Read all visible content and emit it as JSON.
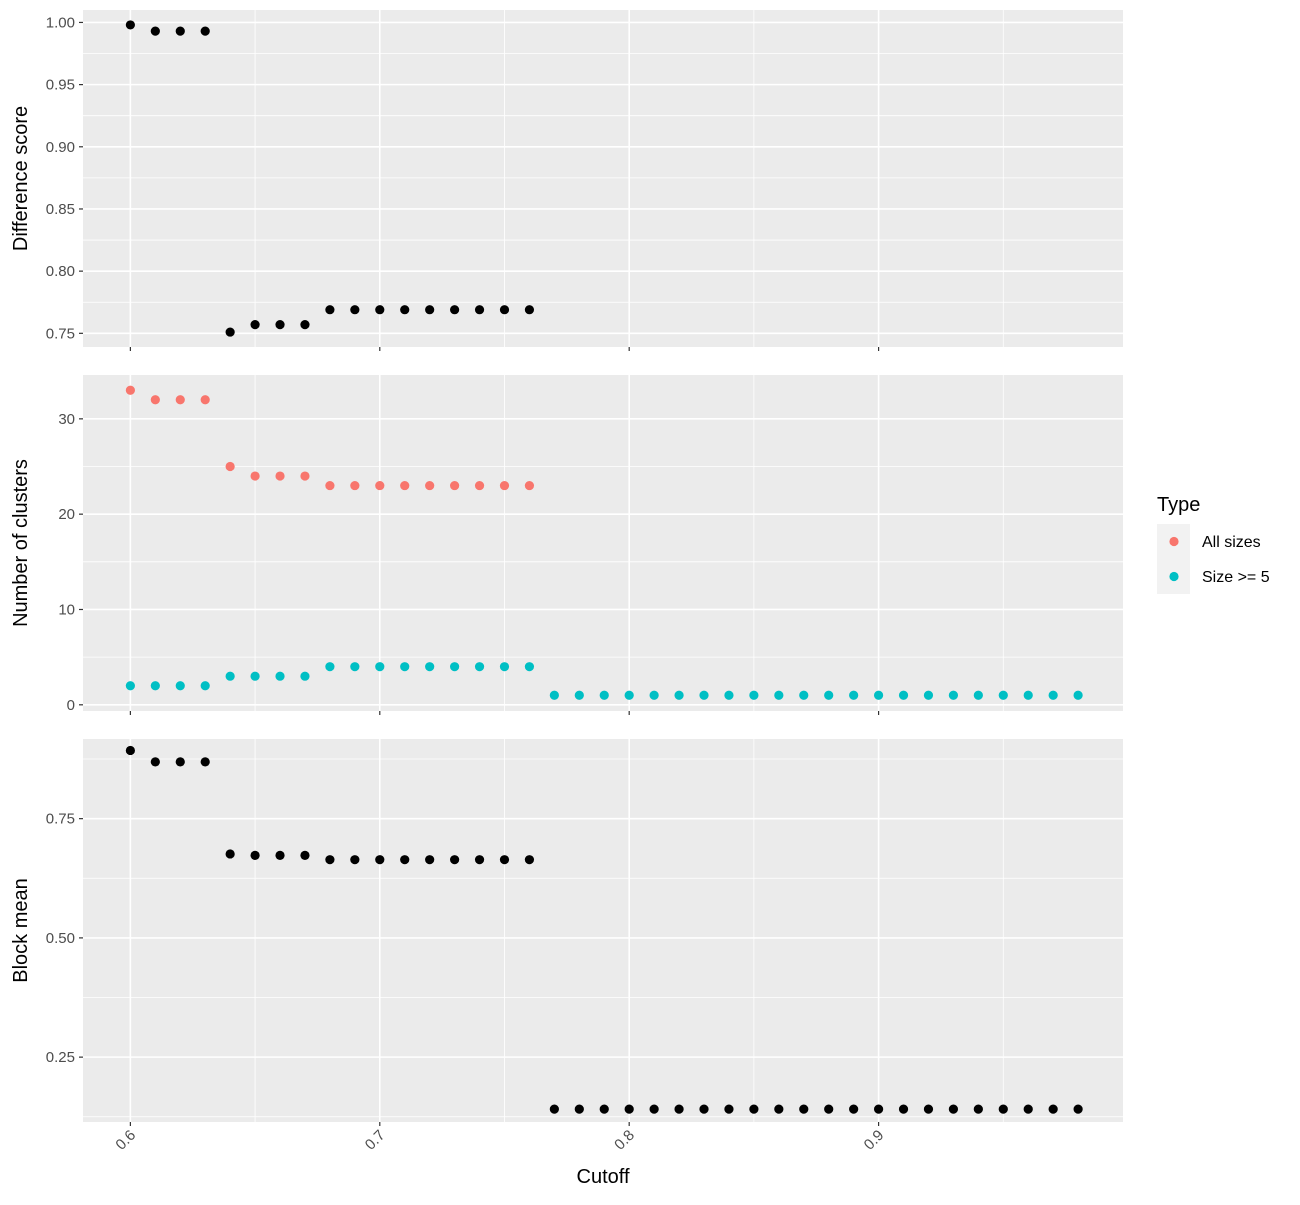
{
  "chart_data": {
    "type": "scatter",
    "xlabel": "Cutoff",
    "x_ticks": [
      0.6,
      0.7,
      0.8,
      0.9
    ],
    "x_tick_labels": [
      "0.6",
      "0.7",
      "0.8",
      "0.9"
    ],
    "xlim": [
      0.581,
      0.998
    ],
    "grid": true,
    "legend": {
      "title": "Type",
      "placement": "right",
      "entries": [
        {
          "label": "All sizes",
          "color": "#F8766D"
        },
        {
          "label": "Size >= 5",
          "color": "#00BFC4"
        }
      ]
    },
    "point_color": "#000000",
    "panels": [
      {
        "ylabel": "Difference score",
        "ylim": [
          0.739,
          1.01
        ],
        "y_ticks": [
          0.75,
          0.8,
          0.85,
          0.9,
          0.95,
          1.0
        ],
        "y_tick_labels": [
          "0.75",
          "0.80",
          "0.85",
          "0.90",
          "0.95",
          "1.00"
        ],
        "series": [
          {
            "color": "#000000",
            "x": [
              0.6,
              0.61,
              0.62,
              0.63,
              0.64,
              0.65,
              0.66,
              0.67,
              0.68,
              0.69,
              0.7,
              0.71,
              0.72,
              0.73,
              0.74,
              0.75,
              0.76
            ],
            "y": [
              0.998,
              0.993,
              0.993,
              0.993,
              0.751,
              0.757,
              0.757,
              0.757,
              0.769,
              0.769,
              0.769,
              0.769,
              0.769,
              0.769,
              0.769,
              0.769,
              0.769
            ]
          }
        ]
      },
      {
        "ylabel": "Number of clusters",
        "ylim": [
          -0.65,
          34.6
        ],
        "y_ticks": [
          0,
          10,
          20,
          30
        ],
        "y_tick_labels": [
          "0",
          "10",
          "20",
          "30"
        ],
        "series": [
          {
            "name": "All sizes",
            "color": "#F8766D",
            "x": [
              0.6,
              0.61,
              0.62,
              0.63,
              0.64,
              0.65,
              0.66,
              0.67,
              0.68,
              0.69,
              0.7,
              0.71,
              0.72,
              0.73,
              0.74,
              0.75,
              0.76
            ],
            "y": [
              33,
              32,
              32,
              32,
              25,
              24,
              24,
              24,
              23,
              23,
              23,
              23,
              23,
              23,
              23,
              23,
              23
            ]
          },
          {
            "name": "Size >= 5",
            "color": "#00BFC4",
            "x": [
              0.6,
              0.61,
              0.62,
              0.63,
              0.64,
              0.65,
              0.66,
              0.67,
              0.68,
              0.69,
              0.7,
              0.71,
              0.72,
              0.73,
              0.74,
              0.75,
              0.76,
              0.77,
              0.78,
              0.79,
              0.8,
              0.81,
              0.82,
              0.83,
              0.84,
              0.85,
              0.86,
              0.87,
              0.88,
              0.89,
              0.9,
              0.91,
              0.92,
              0.93,
              0.94,
              0.95,
              0.96,
              0.97,
              0.98
            ],
            "y": [
              2,
              2,
              2,
              2,
              3,
              3,
              3,
              3,
              4,
              4,
              4,
              4,
              4,
              4,
              4,
              4,
              4,
              1,
              1,
              1,
              1,
              1,
              1,
              1,
              1,
              1,
              1,
              1,
              1,
              1,
              1,
              1,
              1,
              1,
              1,
              1,
              1,
              1,
              1
            ]
          }
        ]
      },
      {
        "ylabel": "Block mean",
        "ylim": [
          0.114,
          0.917
        ],
        "y_ticks": [
          0.25,
          0.5,
          0.75
        ],
        "y_tick_labels": [
          "0.25",
          "0.50",
          "0.75"
        ],
        "series": [
          {
            "color": "#000000",
            "x": [
              0.6,
              0.61,
              0.62,
              0.63,
              0.64,
              0.65,
              0.66,
              0.67,
              0.68,
              0.69,
              0.7,
              0.71,
              0.72,
              0.73,
              0.74,
              0.75,
              0.76,
              0.77,
              0.78,
              0.79,
              0.8,
              0.81,
              0.82,
              0.83,
              0.84,
              0.85,
              0.86,
              0.87,
              0.88,
              0.89,
              0.9,
              0.91,
              0.92,
              0.93,
              0.94,
              0.95,
              0.96,
              0.97,
              0.98
            ],
            "y": [
              0.893,
              0.869,
              0.869,
              0.869,
              0.676,
              0.673,
              0.673,
              0.673,
              0.664,
              0.664,
              0.664,
              0.664,
              0.664,
              0.664,
              0.664,
              0.664,
              0.664,
              0.141,
              0.141,
              0.141,
              0.141,
              0.141,
              0.141,
              0.141,
              0.141,
              0.141,
              0.141,
              0.141,
              0.141,
              0.141,
              0.141,
              0.141,
              0.141,
              0.141,
              0.141,
              0.141,
              0.141,
              0.141,
              0.141
            ]
          }
        ]
      }
    ]
  }
}
